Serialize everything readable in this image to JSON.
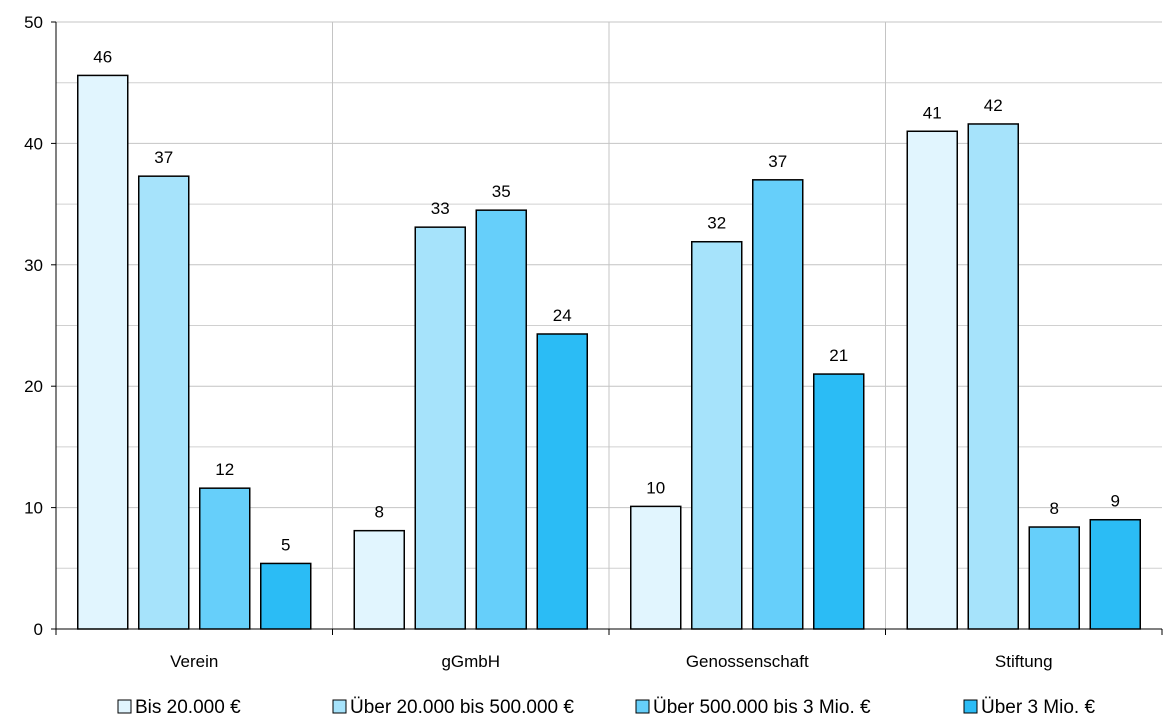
{
  "chart_data": {
    "type": "bar",
    "categories": [
      "Verein",
      "gGmbH",
      "Genossenschaft",
      "Stiftung"
    ],
    "series": [
      {
        "name": "Bis 20.000 €",
        "values": [
          45.6,
          8.1,
          10.1,
          41.0
        ],
        "labels": [
          "46",
          "8",
          "10",
          "41"
        ]
      },
      {
        "name": "Über 20.000 bis 500.000 €",
        "values": [
          37.3,
          33.1,
          31.9,
          41.6
        ],
        "labels": [
          "37",
          "33",
          "32",
          "42"
        ]
      },
      {
        "name": "Über 500.000 bis 3 Mio. €",
        "values": [
          11.6,
          34.5,
          37.0,
          8.4
        ],
        "labels": [
          "12",
          "35",
          "37",
          "8"
        ]
      },
      {
        "name": "Über 3 Mio. €",
        "values": [
          5.4,
          24.3,
          21.0,
          9.0
        ],
        "labels": [
          "5",
          "24",
          "21",
          "9"
        ]
      }
    ],
    "ylim": [
      0,
      50
    ],
    "yticks": [
      0,
      10,
      20,
      30,
      40,
      50
    ],
    "grid": {
      "horizontal": true,
      "minor_horizontal": true,
      "vertical_category_separators": true
    },
    "legend_position": "bottom",
    "colors": [
      "#e1f5fe",
      "#a6e3fb",
      "#66cffa",
      "#2bbcf5"
    ],
    "title": "",
    "xlabel": "",
    "ylabel": ""
  }
}
